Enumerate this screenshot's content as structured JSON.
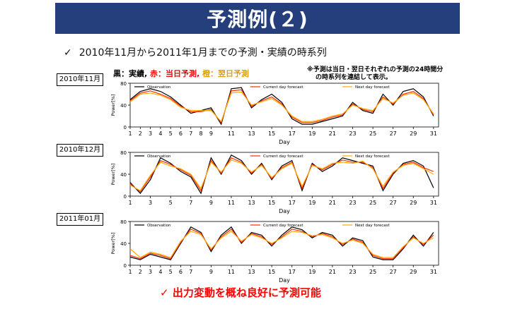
{
  "title": "予測例(２)",
  "subtitle": {
    "check": "✓",
    "text": "2010年11月から2011年1月までの予測・実績の時系列"
  },
  "legend_top": {
    "black": "黒：実績,",
    "red": "赤：当日予測,",
    "yellow": "橙：翌日予測"
  },
  "note": {
    "line1": "※予測は当日・翌日それぞれの予測の24時間分",
    "line2": "の時系列を連結して表示。"
  },
  "footer": {
    "check": "✓",
    "text": "出力変動を概ね良好に予測可能"
  },
  "colors": {
    "observation": "#000000",
    "current": "#ff2a00",
    "next": "#ffaa00",
    "title_bg": "#243f7b"
  },
  "chart_data": [
    {
      "type": "line",
      "label": "2010年11月",
      "xlabel": "Day",
      "ylabel": "Power[%]",
      "ylim": [
        0,
        80
      ],
      "yticks": [
        0,
        40,
        80
      ],
      "xticks": [
        1,
        2,
        3,
        4,
        5,
        6,
        7,
        8,
        9,
        11,
        13,
        15,
        17,
        19,
        21,
        23,
        25,
        27,
        29,
        31
      ],
      "legend": [
        "Observation",
        "Current day forecast",
        "Next day forecast"
      ],
      "x": [
        1,
        2,
        3,
        4,
        5,
        6,
        7,
        8,
        9,
        10,
        11,
        12,
        13,
        14,
        15,
        16,
        17,
        18,
        19,
        20,
        21,
        22,
        23,
        24,
        25,
        26,
        27,
        28,
        29,
        30,
        31
      ],
      "series": [
        {
          "name": "Observation",
          "values": [
            50,
            65,
            70,
            65,
            55,
            40,
            25,
            30,
            35,
            5,
            70,
            72,
            35,
            50,
            60,
            45,
            15,
            5,
            5,
            10,
            15,
            20,
            45,
            30,
            25,
            60,
            40,
            65,
            70,
            55,
            20
          ]
        },
        {
          "name": "Current day forecast",
          "values": [
            48,
            62,
            66,
            60,
            52,
            38,
            28,
            28,
            32,
            8,
            66,
            68,
            38,
            48,
            55,
            42,
            18,
            8,
            8,
            12,
            18,
            22,
            42,
            32,
            28,
            55,
            42,
            60,
            65,
            52,
            22
          ]
        },
        {
          "name": "Next day forecast",
          "values": [
            46,
            60,
            62,
            58,
            50,
            36,
            30,
            30,
            30,
            10,
            62,
            64,
            40,
            46,
            52,
            40,
            20,
            10,
            10,
            14,
            20,
            24,
            40,
            34,
            30,
            52,
            44,
            58,
            62,
            50,
            24
          ]
        }
      ]
    },
    {
      "type": "line",
      "label": "2010年12月",
      "xlabel": "Day",
      "ylabel": "Power[%]",
      "ylim": [
        0,
        80
      ],
      "yticks": [
        0,
        40,
        80
      ],
      "xticks": [
        1,
        3,
        5,
        7,
        9,
        11,
        13,
        15,
        17,
        19,
        21,
        23,
        25,
        27,
        29,
        31
      ],
      "legend": [
        "Observation",
        "Current day forecast",
        "Next day forecast"
      ],
      "x": [
        1,
        2,
        3,
        4,
        5,
        6,
        7,
        8,
        9,
        10,
        11,
        12,
        13,
        14,
        15,
        16,
        17,
        18,
        19,
        20,
        21,
        22,
        23,
        24,
        25,
        26,
        27,
        28,
        29,
        30,
        31
      ],
      "series": [
        {
          "name": "Observation",
          "values": [
            25,
            5,
            30,
            70,
            60,
            45,
            35,
            5,
            70,
            40,
            75,
            65,
            40,
            60,
            30,
            55,
            65,
            10,
            60,
            45,
            55,
            70,
            65,
            60,
            55,
            10,
            40,
            60,
            65,
            55,
            15
          ]
        },
        {
          "name": "Current day forecast",
          "values": [
            22,
            8,
            35,
            65,
            58,
            48,
            38,
            10,
            65,
            42,
            70,
            62,
            42,
            58,
            32,
            52,
            62,
            14,
            58,
            48,
            58,
            66,
            62,
            62,
            52,
            14,
            42,
            58,
            62,
            52,
            45
          ]
        },
        {
          "name": "Next day forecast",
          "values": [
            20,
            10,
            38,
            62,
            55,
            50,
            40,
            14,
            62,
            44,
            66,
            60,
            44,
            56,
            34,
            50,
            60,
            18,
            56,
            50,
            60,
            62,
            60,
            64,
            50,
            18,
            44,
            56,
            60,
            50,
            40
          ]
        }
      ]
    },
    {
      "type": "line",
      "label": "2011年01月",
      "xlabel": "Day",
      "ylabel": "Power[%]",
      "ylim": [
        0,
        80
      ],
      "yticks": [
        0,
        40,
        80
      ],
      "xticks": [
        1,
        2,
        3,
        4,
        5,
        6,
        7,
        9,
        11,
        13,
        15,
        17,
        19,
        21,
        23,
        25,
        27,
        29,
        31
      ],
      "legend": [
        "Observation",
        "Current day forecast",
        "Next day forecast"
      ],
      "x": [
        1,
        2,
        3,
        4,
        5,
        6,
        7,
        8,
        9,
        10,
        11,
        12,
        13,
        14,
        15,
        16,
        17,
        18,
        19,
        20,
        21,
        22,
        23,
        24,
        25,
        26,
        27,
        28,
        29,
        30,
        31
      ],
      "series": [
        {
          "name": "Observation",
          "values": [
            15,
            10,
            20,
            15,
            10,
            40,
            70,
            60,
            25,
            55,
            70,
            40,
            60,
            55,
            35,
            55,
            70,
            65,
            50,
            60,
            55,
            35,
            50,
            45,
            15,
            10,
            10,
            30,
            55,
            35,
            60
          ]
        },
        {
          "name": "Current day forecast",
          "values": [
            18,
            12,
            22,
            18,
            12,
            42,
            66,
            58,
            28,
            52,
            66,
            42,
            58,
            52,
            38,
            52,
            66,
            62,
            52,
            58,
            52,
            38,
            48,
            42,
            18,
            12,
            12,
            32,
            52,
            38,
            55
          ]
        },
        {
          "name": "Next day forecast",
          "values": [
            30,
            14,
            24,
            20,
            14,
            44,
            62,
            56,
            30,
            50,
            62,
            44,
            56,
            50,
            40,
            50,
            62,
            60,
            54,
            56,
            50,
            40,
            46,
            40,
            20,
            14,
            14,
            34,
            50,
            40,
            50
          ]
        }
      ]
    }
  ]
}
